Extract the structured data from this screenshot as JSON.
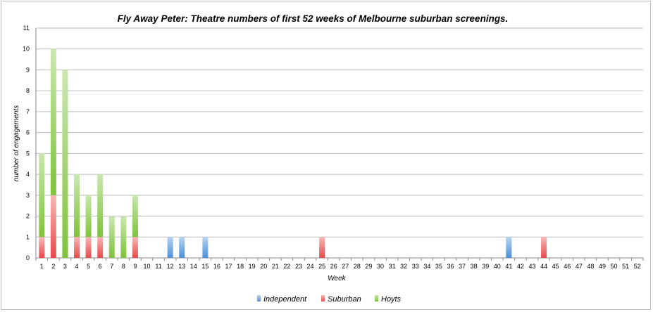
{
  "chart_data": {
    "type": "bar",
    "stacked": true,
    "title": "Fly Away Peter: Theatre numbers of first 52 weeks of Melbourne suburban screenings.",
    "xlabel": "Week",
    "ylabel": "number of engagements",
    "ylim": [
      0,
      11
    ],
    "yticks": [
      "0",
      "1",
      "2",
      "3",
      "4",
      "5",
      "6",
      "7",
      "8",
      "9",
      "10",
      "11"
    ],
    "grid": true,
    "legend_position": "bottom",
    "categories": [
      "1",
      "2",
      "3",
      "4",
      "5",
      "6",
      "7",
      "8",
      "9",
      "10",
      "11",
      "12",
      "13",
      "14",
      "15",
      "16",
      "17",
      "18",
      "19",
      "20",
      "21",
      "22",
      "23",
      "24",
      "25",
      "26",
      "27",
      "28",
      "29",
      "30",
      "31",
      "32",
      "33",
      "34",
      "35",
      "36",
      "37",
      "38",
      "39",
      "40",
      "41",
      "42",
      "43",
      "44",
      "45",
      "46",
      "47",
      "48",
      "49",
      "50",
      "51",
      "52"
    ],
    "series": [
      {
        "name": "Independent",
        "color": "#4a90d9",
        "values": [
          0,
          0,
          0,
          0,
          0,
          0,
          0,
          0,
          0,
          0,
          0,
          1,
          1,
          0,
          1,
          0,
          0,
          0,
          0,
          0,
          0,
          0,
          0,
          0,
          0,
          0,
          0,
          0,
          0,
          0,
          0,
          0,
          0,
          0,
          0,
          0,
          0,
          0,
          0,
          0,
          1,
          0,
          0,
          0,
          0,
          0,
          0,
          0,
          0,
          0,
          0,
          0
        ]
      },
      {
        "name": "Suburban",
        "color": "#e84a4a",
        "values": [
          1,
          3,
          0,
          1,
          1,
          1,
          0,
          0,
          1,
          0,
          0,
          0,
          0,
          0,
          0,
          0,
          0,
          0,
          0,
          0,
          0,
          0,
          0,
          0,
          1,
          0,
          0,
          0,
          0,
          0,
          0,
          0,
          0,
          0,
          0,
          0,
          0,
          0,
          0,
          0,
          0,
          0,
          0,
          1,
          0,
          0,
          0,
          0,
          0,
          0,
          0,
          0
        ]
      },
      {
        "name": "Hoyts",
        "color": "#7ec33a",
        "values": [
          4,
          7,
          9,
          3,
          2,
          3,
          2,
          2,
          2,
          0,
          0,
          0,
          0,
          0,
          0,
          0,
          0,
          0,
          0,
          0,
          0,
          0,
          0,
          0,
          0,
          0,
          0,
          0,
          0,
          0,
          0,
          0,
          0,
          0,
          0,
          0,
          0,
          0,
          0,
          0,
          0,
          0,
          0,
          0,
          0,
          0,
          0,
          0,
          0,
          0,
          0,
          0
        ]
      }
    ]
  }
}
